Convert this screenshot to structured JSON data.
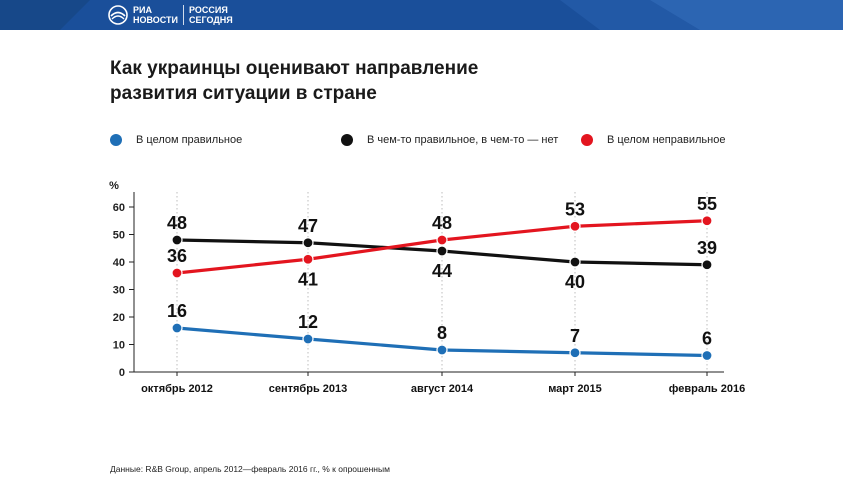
{
  "header": {
    "logo_line1": "РИА",
    "logo_line2": "НОВОСТИ",
    "logo2_line1": "РОССИЯ",
    "logo2_line2": "СЕГОДНЯ",
    "background_color": "#1a4f9a"
  },
  "title_line1": "Как украинцы оценивают направление",
  "title_line2": "развития ситуации в стране",
  "source": "Данные: R&B Group, апрель 2012—февраль 2016 гг., % к опрошенным",
  "chart_data": {
    "type": "line",
    "ylabel": "%",
    "ylim": [
      0,
      60
    ],
    "yticks": [
      0,
      10,
      20,
      30,
      40,
      50,
      60
    ],
    "categories": [
      "октябрь 2012",
      "сентябрь 2013",
      "август 2014",
      "март 2015",
      "февраль 2016"
    ],
    "legend_position": "top",
    "grid": "vertical dotted",
    "series": [
      {
        "name": "В целом правильное",
        "color": "#1f6fb6",
        "values": [
          16,
          12,
          8,
          7,
          6
        ]
      },
      {
        "name": "В чем-то правильное, в чем-то — нет",
        "color": "#111111",
        "values": [
          48,
          47,
          44,
          40,
          39
        ]
      },
      {
        "name": "В целом неправильное",
        "color": "#e3151f",
        "values": [
          36,
          41,
          48,
          53,
          55
        ]
      }
    ]
  }
}
